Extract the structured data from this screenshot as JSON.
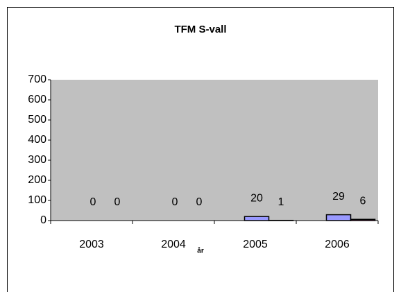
{
  "chart_data": {
    "type": "bar",
    "title": "TFM S-vall",
    "x_label": "år",
    "categories": [
      "2003",
      "2004",
      "2005",
      "2006"
    ],
    "series": [
      {
        "color": "#9999ff",
        "values": [
          0,
          0,
          20,
          29
        ]
      },
      {
        "color": "#993366",
        "values": [
          0,
          0,
          1,
          6
        ]
      }
    ],
    "ylim": [
      0,
      700
    ],
    "yticks": [
      0,
      100,
      200,
      300,
      400,
      500,
      600,
      700
    ],
    "plot_background": "#c0c0c0"
  }
}
